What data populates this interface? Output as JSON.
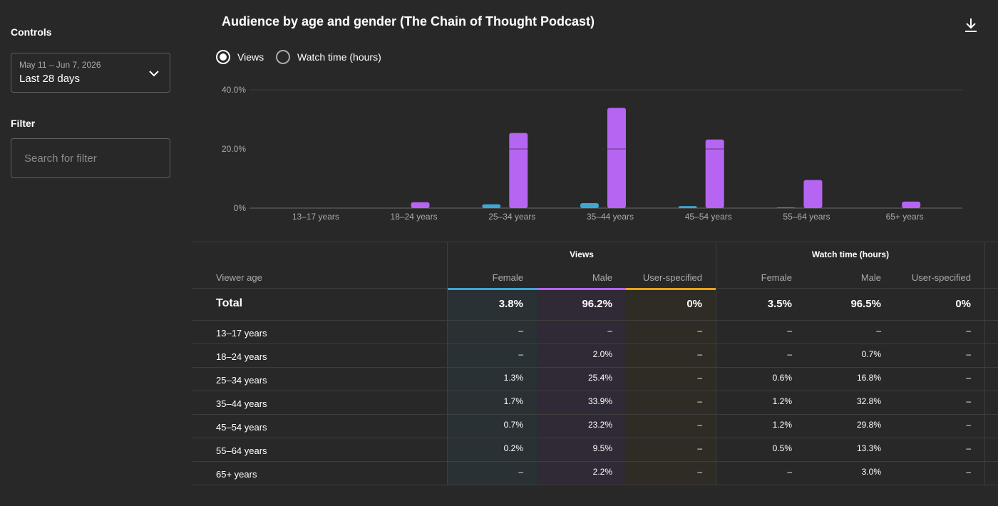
{
  "sidebar": {
    "controls_title": "Controls",
    "date_range": "May 11 – Jun 7, 2026",
    "date_label": "Last 28 days",
    "filter_title": "Filter",
    "filter_placeholder": "Search for filter"
  },
  "header": {
    "title": "Audience by age and gender (The Chain of Thought Podcast)",
    "radio_views": "Views",
    "radio_watch": "Watch time (hours)",
    "selected_metric": "Views"
  },
  "colors": {
    "female": "#3ea6d2",
    "male": "#b565f2",
    "user_specified": "#e8a317"
  },
  "chart_data": {
    "type": "bar",
    "categories": [
      "13–17 years",
      "18–24 years",
      "25–34 years",
      "35–44 years",
      "45–54 years",
      "55–64 years",
      "65+ years"
    ],
    "series": [
      {
        "name": "Female",
        "values": [
          0,
          0,
          1.3,
          1.7,
          0.7,
          0.2,
          0
        ]
      },
      {
        "name": "Male",
        "values": [
          0,
          2.0,
          25.4,
          33.9,
          23.2,
          9.5,
          2.2
        ]
      }
    ],
    "y_ticks": [
      "40.0%",
      "20.0%",
      "0%"
    ],
    "ylim": [
      0,
      40
    ],
    "grid": true
  },
  "table": {
    "row_header": "Viewer age",
    "groups": [
      "Views",
      "Watch time (hours)"
    ],
    "columns": [
      "Female",
      "Male",
      "User-specified",
      "Female",
      "Male",
      "User-specified"
    ],
    "total_label": "Total",
    "totals": [
      "3.8%",
      "96.2%",
      "0%",
      "3.5%",
      "96.5%",
      "0%"
    ],
    "rows": [
      {
        "label": "13–17 years",
        "cells": [
          "–",
          "–",
          "–",
          "–",
          "–",
          "–"
        ]
      },
      {
        "label": "18–24 years",
        "cells": [
          "–",
          "2.0%",
          "–",
          "–",
          "0.7%",
          "–"
        ]
      },
      {
        "label": "25–34 years",
        "cells": [
          "1.3%",
          "25.4%",
          "–",
          "0.6%",
          "16.8%",
          "–"
        ]
      },
      {
        "label": "35–44 years",
        "cells": [
          "1.7%",
          "33.9%",
          "–",
          "1.2%",
          "32.8%",
          "–"
        ]
      },
      {
        "label": "45–54 years",
        "cells": [
          "0.7%",
          "23.2%",
          "–",
          "1.2%",
          "29.8%",
          "–"
        ]
      },
      {
        "label": "55–64 years",
        "cells": [
          "0.2%",
          "9.5%",
          "–",
          "0.5%",
          "13.3%",
          "–"
        ]
      },
      {
        "label": "65+ years",
        "cells": [
          "–",
          "2.2%",
          "–",
          "–",
          "3.0%",
          "–"
        ]
      }
    ]
  }
}
